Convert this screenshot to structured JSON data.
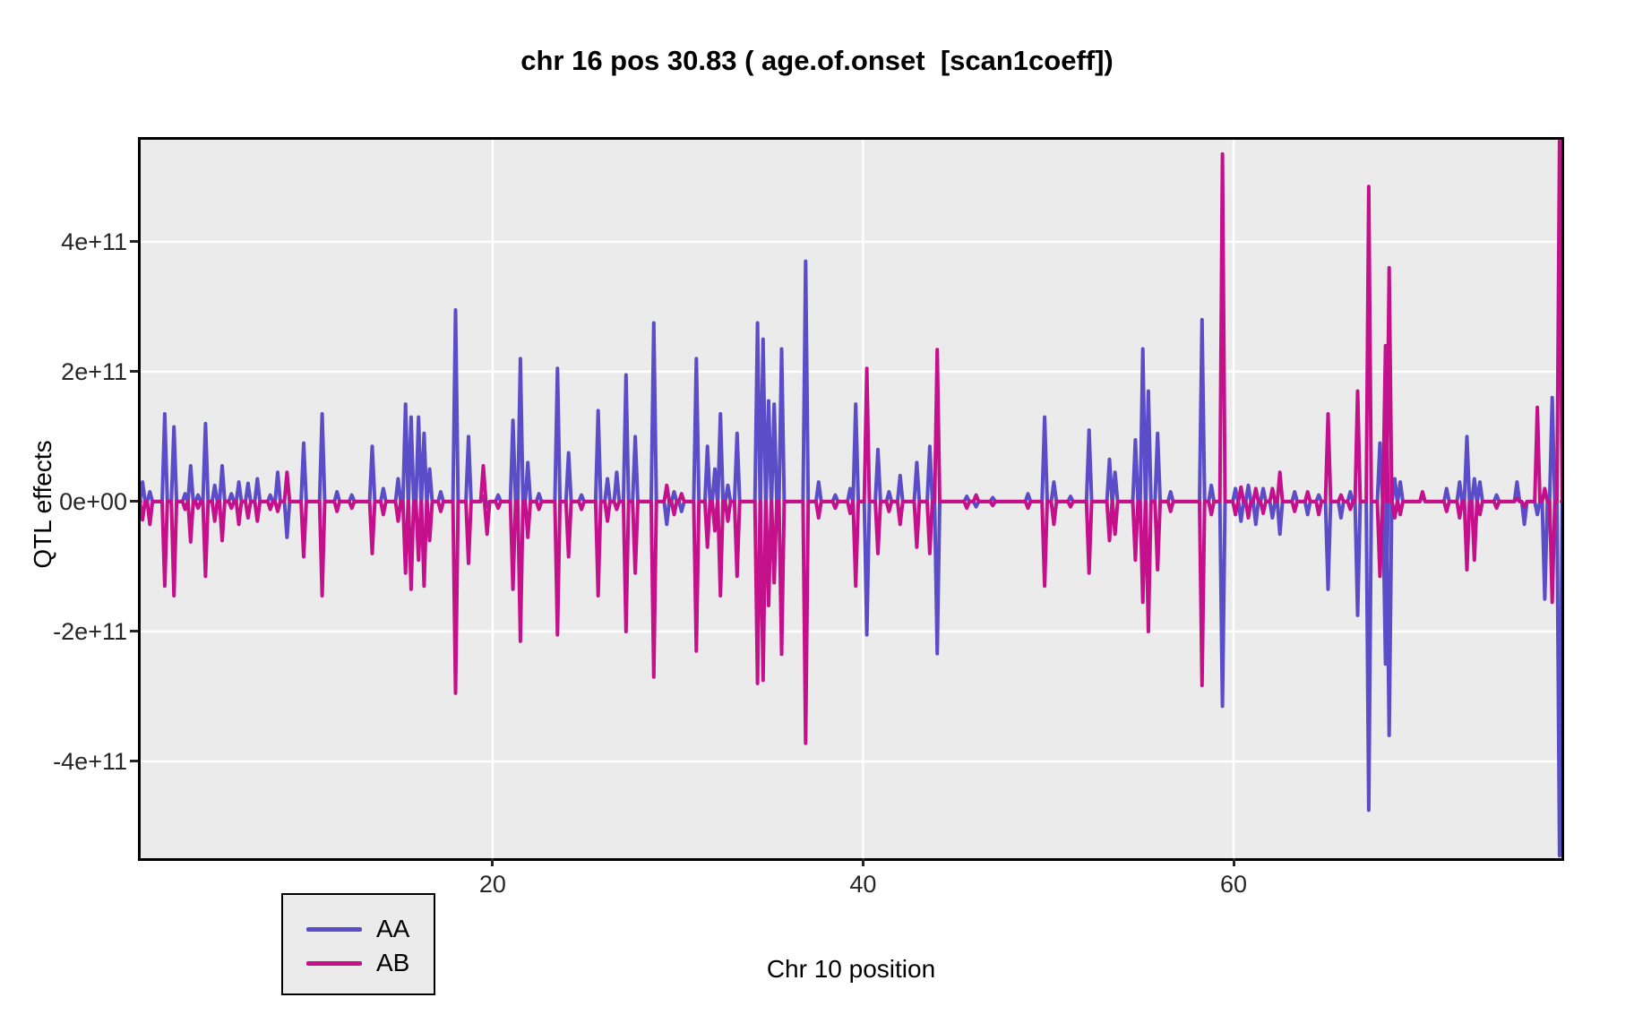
{
  "title": "chr 16 pos 30.83 ( age.of.onset  [scan1coeff])",
  "colors": {
    "aa_line": "#5B4CC8",
    "ab_line": "#C5108C",
    "panel_background": "#EBEBEB",
    "gridline": "#FFFFFF",
    "panel_border": "#000000",
    "page_background": "#FFFFFF"
  },
  "legend": {
    "items": [
      {
        "label": "AA",
        "color": "#5B4CC8"
      },
      {
        "label": "AB",
        "color": "#C5108C"
      }
    ],
    "position": "bottom-left"
  },
  "chart_data": {
    "type": "line",
    "title": "chr 16 pos 30.83 ( age.of.onset  [scan1coeff])",
    "xlabel": "Chr 10 position",
    "ylabel": "QTL effects",
    "xlim": [
      1.0,
      77.7
    ],
    "ylim": [
      -549000000000.0,
      557000000000.0
    ],
    "grid": "major-only, white on grey panel",
    "legend_position": "bottom-left inside panel",
    "x_axis": {
      "tick_values": [
        20,
        40,
        60
      ],
      "tick_labels": [
        "20",
        "40",
        "60"
      ]
    },
    "y_axis": {
      "tick_values": [
        400000000000.0,
        200000000000.0,
        0,
        -200000000000.0,
        -400000000000.0
      ],
      "tick_labels": [
        "4e+11",
        "2e+11",
        "0e+00",
        "-2e+11",
        "-4e+11"
      ]
    },
    "series_names": [
      "AA",
      "AB"
    ],
    "spike_format": [
      "position",
      "AA_value",
      "AB_value"
    ],
    "spikes": [
      [
        1.1,
        30000000000.0,
        -28000000000.0
      ],
      [
        1.5,
        15000000000.0,
        -35000000000.0
      ],
      [
        2.3,
        135000000000.0,
        -130000000000.0
      ],
      [
        2.8,
        115000000000.0,
        -145000000000.0
      ],
      [
        3.4,
        12000000000.0,
        -12000000000.0
      ],
      [
        3.7,
        55000000000.0,
        -62000000000.0
      ],
      [
        4.1,
        10000000000.0,
        -10000000000.0
      ],
      [
        4.5,
        120000000000.0,
        -115000000000.0
      ],
      [
        5.0,
        25000000000.0,
        -30000000000.0
      ],
      [
        5.4,
        55000000000.0,
        -60000000000.0
      ],
      [
        5.9,
        12000000000.0,
        -10000000000.0
      ],
      [
        6.3,
        30000000000.0,
        -35000000000.0
      ],
      [
        6.8,
        28000000000.0,
        -25000000000.0
      ],
      [
        7.3,
        35000000000.0,
        -30000000000.0
      ],
      [
        8.0,
        10000000000.0,
        -12000000000.0
      ],
      [
        8.4,
        45000000000.0,
        -15000000000.0
      ],
      [
        8.9,
        -55000000000.0,
        45000000000.0
      ],
      [
        9.8,
        90000000000.0,
        -85000000000.0
      ],
      [
        10.8,
        135000000000.0,
        -145000000000.0
      ],
      [
        11.6,
        15000000000.0,
        -15000000000.0
      ],
      [
        12.4,
        10000000000.0,
        -10000000000.0
      ],
      [
        13.5,
        85000000000.0,
        -80000000000.0
      ],
      [
        14.1,
        20000000000.0,
        -20000000000.0
      ],
      [
        14.9,
        35000000000.0,
        -30000000000.0
      ],
      [
        15.3,
        150000000000.0,
        -110000000000.0
      ],
      [
        15.6,
        130000000000.0,
        -135000000000.0
      ],
      [
        16.0,
        130000000000.0,
        -90000000000.0
      ],
      [
        16.3,
        105000000000.0,
        -130000000000.0
      ],
      [
        16.6,
        50000000000.0,
        -60000000000.0
      ],
      [
        17.2,
        15000000000.0,
        -15000000000.0
      ],
      [
        18.0,
        295000000000.0,
        -295000000000.0
      ],
      [
        18.7,
        100000000000.0,
        -95000000000.0
      ],
      [
        19.5,
        8000000000.0,
        55000000000.0
      ],
      [
        19.7,
        -8000000000.0,
        -50000000000.0
      ],
      [
        20.3,
        10000000000.0,
        -10000000000.0
      ],
      [
        21.1,
        125000000000.0,
        -135000000000.0
      ],
      [
        21.5,
        220000000000.0,
        -215000000000.0
      ],
      [
        21.9,
        60000000000.0,
        -55000000000.0
      ],
      [
        22.5,
        12000000000.0,
        -12000000000.0
      ],
      [
        23.5,
        205000000000.0,
        -205000000000.0
      ],
      [
        24.1,
        75000000000.0,
        -85000000000.0
      ],
      [
        24.8,
        10000000000.0,
        -12000000000.0
      ],
      [
        25.7,
        140000000000.0,
        -145000000000.0
      ],
      [
        26.2,
        35000000000.0,
        -30000000000.0
      ],
      [
        26.7,
        45000000000.0,
        -12000000000.0
      ],
      [
        27.2,
        195000000000.0,
        -200000000000.0
      ],
      [
        27.7,
        100000000000.0,
        -110000000000.0
      ],
      [
        28.7,
        275000000000.0,
        -270000000000.0
      ],
      [
        29.4,
        -35000000000.0,
        25000000000.0
      ],
      [
        29.8,
        15000000000.0,
        -20000000000.0
      ],
      [
        30.2,
        -15000000000.0,
        12000000000.0
      ],
      [
        31.0,
        220000000000.0,
        -230000000000.0
      ],
      [
        31.6,
        85000000000.0,
        -70000000000.0
      ],
      [
        32.0,
        50000000000.0,
        -45000000000.0
      ],
      [
        32.3,
        135000000000.0,
        -145000000000.0
      ],
      [
        32.7,
        25000000000.0,
        -30000000000.0
      ],
      [
        33.2,
        105000000000.0,
        -115000000000.0
      ],
      [
        34.3,
        275000000000.0,
        -280000000000.0
      ],
      [
        34.6,
        250000000000.0,
        -275000000000.0
      ],
      [
        34.9,
        155000000000.0,
        -160000000000.0
      ],
      [
        35.2,
        150000000000.0,
        -125000000000.0
      ],
      [
        35.6,
        235000000000.0,
        -235000000000.0
      ],
      [
        36.9,
        370000000000.0,
        -372000000000.0
      ],
      [
        37.6,
        30000000000.0,
        -25000000000.0
      ],
      [
        38.5,
        10000000000.0,
        -10000000000.0
      ],
      [
        39.3,
        20000000000.0,
        -18000000000.0
      ],
      [
        39.6,
        150000000000.0,
        -130000000000.0
      ],
      [
        40.2,
        -205000000000.0,
        205000000000.0
      ],
      [
        40.8,
        80000000000.0,
        -80000000000.0
      ],
      [
        41.4,
        15000000000.0,
        -15000000000.0
      ],
      [
        42.0,
        40000000000.0,
        -35000000000.0
      ],
      [
        42.9,
        60000000000.0,
        -70000000000.0
      ],
      [
        43.6,
        85000000000.0,
        -80000000000.0
      ],
      [
        44.0,
        -234000000000.0,
        234000000000.0
      ],
      [
        45.6,
        8000000000.0,
        -10000000000.0
      ],
      [
        46.1,
        -8000000000.0,
        10000000000.0
      ],
      [
        47.0,
        6000000000.0,
        -6000000000.0
      ],
      [
        48.9,
        12000000000.0,
        -10000000000.0
      ],
      [
        49.8,
        130000000000.0,
        -130000000000.0
      ],
      [
        50.3,
        30000000000.0,
        -35000000000.0
      ],
      [
        51.2,
        8000000000.0,
        -8000000000.0
      ],
      [
        52.2,
        110000000000.0,
        -110000000000.0
      ],
      [
        53.3,
        65000000000.0,
        -60000000000.0
      ],
      [
        53.6,
        45000000000.0,
        -50000000000.0
      ],
      [
        54.7,
        95000000000.0,
        -90000000000.0
      ],
      [
        55.1,
        235000000000.0,
        -155000000000.0
      ],
      [
        55.4,
        170000000000.0,
        -200000000000.0
      ],
      [
        55.9,
        105000000000.0,
        -105000000000.0
      ],
      [
        56.6,
        15000000000.0,
        -15000000000.0
      ],
      [
        58.3,
        280000000000.0,
        -283000000000.0
      ],
      [
        58.8,
        25000000000.0,
        -20000000000.0
      ],
      [
        59.4,
        -315000000000.0,
        535000000000.0
      ],
      [
        60.1,
        20000000000.0,
        -20000000000.0
      ],
      [
        60.4,
        -30000000000.0,
        22000000000.0
      ],
      [
        60.8,
        25000000000.0,
        -25000000000.0
      ],
      [
        61.2,
        -35000000000.0,
        20000000000.0
      ],
      [
        61.6,
        20000000000.0,
        -18000000000.0
      ],
      [
        62.1,
        -25000000000.0,
        20000000000.0
      ],
      [
        62.5,
        -50000000000.0,
        45000000000.0
      ],
      [
        63.3,
        15000000000.0,
        -15000000000.0
      ],
      [
        64.0,
        -20000000000.0,
        15000000000.0
      ],
      [
        64.6,
        10000000000.0,
        -20000000000.0
      ],
      [
        65.1,
        -135000000000.0,
        135000000000.0
      ],
      [
        65.8,
        -25000000000.0,
        10000000000.0
      ],
      [
        66.3,
        15000000000.0,
        -12000000000.0
      ],
      [
        66.7,
        -175000000000.0,
        170000000000.0
      ],
      [
        67.3,
        -475000000000.0,
        485000000000.0
      ],
      [
        67.9,
        90000000000.0,
        -115000000000.0
      ],
      [
        68.2,
        -250000000000.0,
        240000000000.0
      ],
      [
        68.4,
        -360000000000.0,
        360000000000.0
      ],
      [
        68.7,
        35000000000.0,
        -25000000000.0
      ],
      [
        69.0,
        30000000000.0,
        -20000000000.0
      ],
      [
        70.2,
        10000000000.0,
        15000000000.0
      ],
      [
        71.5,
        20000000000.0,
        -15000000000.0
      ],
      [
        72.2,
        30000000000.0,
        -25000000000.0
      ],
      [
        72.6,
        100000000000.0,
        -105000000000.0
      ],
      [
        73.0,
        35000000000.0,
        -90000000000.0
      ],
      [
        73.3,
        30000000000.0,
        -20000000000.0
      ],
      [
        74.2,
        10000000000.0,
        -10000000000.0
      ],
      [
        75.3,
        30000000000.0,
        5000000000.0
      ],
      [
        75.7,
        -35000000000.0,
        -8000000000.0
      ],
      [
        76.4,
        -20000000000.0,
        145000000000.0
      ],
      [
        76.8,
        -150000000000.0,
        20000000000.0
      ],
      [
        77.2,
        160000000000.0,
        -155000000000.0
      ],
      [
        77.6,
        -545000000000.0,
        555000000000.0
      ]
    ]
  },
  "axes": {
    "y_title": "QTL effects",
    "x_title": "Chr 10 position"
  }
}
